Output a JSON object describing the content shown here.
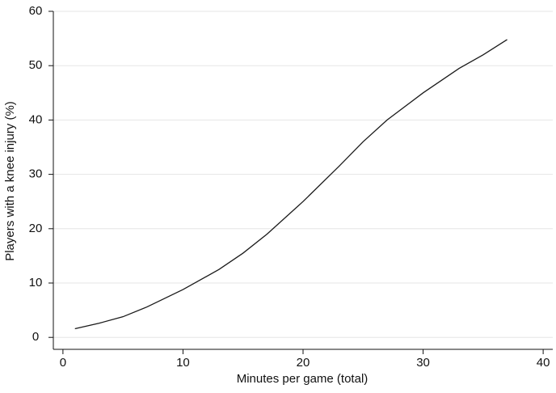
{
  "chart_data": {
    "type": "line",
    "x_label": "Minutes per game (total)",
    "y_label": "Players with a knee injury (%)",
    "x": [
      1,
      3,
      5,
      7,
      10,
      13,
      15,
      17,
      20,
      23,
      25,
      27,
      30,
      33,
      35,
      37
    ],
    "series": [
      {
        "color": "#1a1a1a",
        "values": [
          1.6,
          2.6,
          3.8,
          5.6,
          8.8,
          12.5,
          15.5,
          19,
          25,
          31.5,
          36,
          40,
          45,
          49.5,
          52,
          54.8
        ]
      }
    ],
    "xlim": [
      -0.8,
      40.8
    ],
    "ylim": [
      -2.2,
      60
    ],
    "xticks": [
      0,
      10,
      20,
      30,
      40
    ],
    "yticks": [
      0,
      10,
      20,
      30,
      40,
      50,
      60
    ],
    "grid": true
  }
}
